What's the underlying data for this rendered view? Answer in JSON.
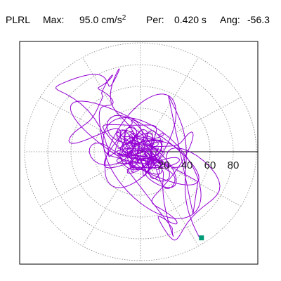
{
  "header": {
    "station": "PLRL",
    "max_label": "Max:",
    "max_value": "95.0 cm/s",
    "max_exp": "2",
    "per_label": "Per:",
    "per_value": "0.420 s",
    "ang_label": "Ang:",
    "ang_value": "-56.3"
  },
  "chart_data": {
    "type": "polar-orbit",
    "title": "PLRL Max: 95.0 cm/s2 Per: 0.420 s Ang: -56.3",
    "radial_ticks": [
      20,
      40,
      60,
      80
    ],
    "radial_tick_labels": [
      "20",
      "40",
      "60",
      "80"
    ],
    "rmax": 100,
    "grid": true,
    "spokes_deg": [
      0,
      30,
      60,
      90,
      120,
      150,
      180,
      210,
      240,
      270,
      300,
      330
    ],
    "max_amplitude": 95.0,
    "max_angle_deg": -56.3,
    "end_marker": {
      "x": 52.6,
      "y": -79.1
    },
    "colors": {
      "trace": "#9400d3",
      "marker": "#009b77",
      "grid": "#9a9a9a",
      "axis": "#000000"
    }
  }
}
